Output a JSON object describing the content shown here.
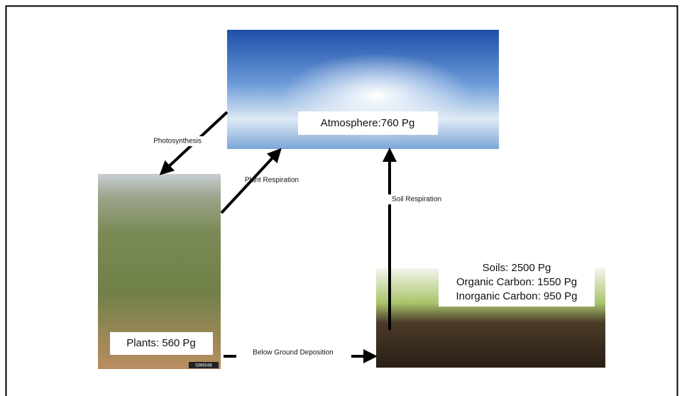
{
  "nodes": [
    {
      "label": "Atmosphere:760 Pg"
    },
    {
      "label": "Plants: 560 Pg",
      "photo_id": "5366048"
    },
    {
      "lines": [
        "Soils: 2500 Pg",
        "Organic Carbon: 1550 Pg",
        "Inorganic Carbon: 950 Pg"
      ]
    }
  ],
  "edges": [
    {
      "label": "Photosynthesis"
    },
    {
      "label": "Plant Respiration"
    },
    {
      "label": "Soil Respiration"
    },
    {
      "label": "Below Ground Deposition"
    }
  ]
}
